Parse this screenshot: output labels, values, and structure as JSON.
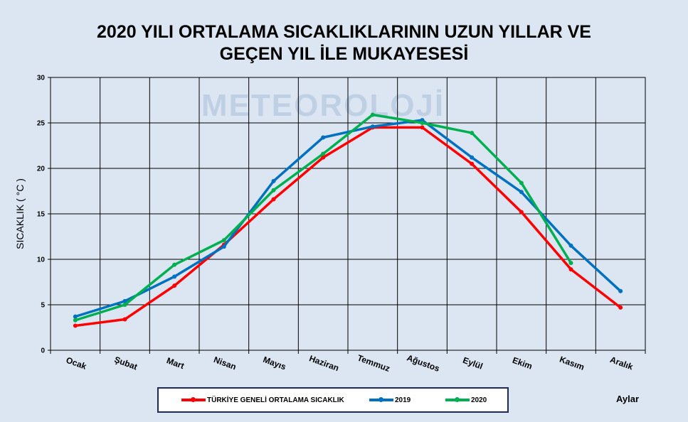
{
  "chart_data": {
    "type": "line",
    "title": [
      "2020 YILI ORTALAMA SICAKLIKLARININ UZUN YILLAR VE",
      "GEÇEN  YIL İLE MUKAYESESİ"
    ],
    "xlabel": "Aylar",
    "ylabel": "SICAKLIK ( °C )",
    "ylim": [
      0,
      30
    ],
    "yticks": [
      "0",
      "5",
      "10",
      "15",
      "20",
      "25",
      "30"
    ],
    "grid": true,
    "legend_position": "bottom",
    "watermark": "METEOROLOJİ",
    "categories": [
      "Ocak",
      "Şubat",
      "Mart",
      "Nisan",
      "Mayıs",
      "Haziran",
      "Temmuz",
      "Ağustos",
      "Eylül",
      "Ekim",
      "Kasım",
      "Aralık"
    ],
    "series": [
      {
        "name": "TÜRKİYE GENELİ ORTALAMA SICAKLIK",
        "color": "#ff0000",
        "values": [
          2.7,
          3.4,
          7.1,
          11.6,
          16.6,
          21.2,
          24.5,
          24.5,
          20.5,
          15.2,
          8.9,
          4.7
        ]
      },
      {
        "name": "2019",
        "color": "#0070c0",
        "values": [
          3.7,
          5.4,
          8.1,
          11.4,
          18.6,
          23.4,
          24.6,
          25.3,
          21.2,
          17.4,
          11.5,
          6.5
        ]
      },
      {
        "name": "2020",
        "color": "#00b050",
        "values": [
          3.3,
          5.0,
          9.4,
          12.1,
          17.6,
          21.6,
          25.9,
          25.0,
          23.9,
          18.4,
          9.6,
          null
        ]
      }
    ]
  }
}
